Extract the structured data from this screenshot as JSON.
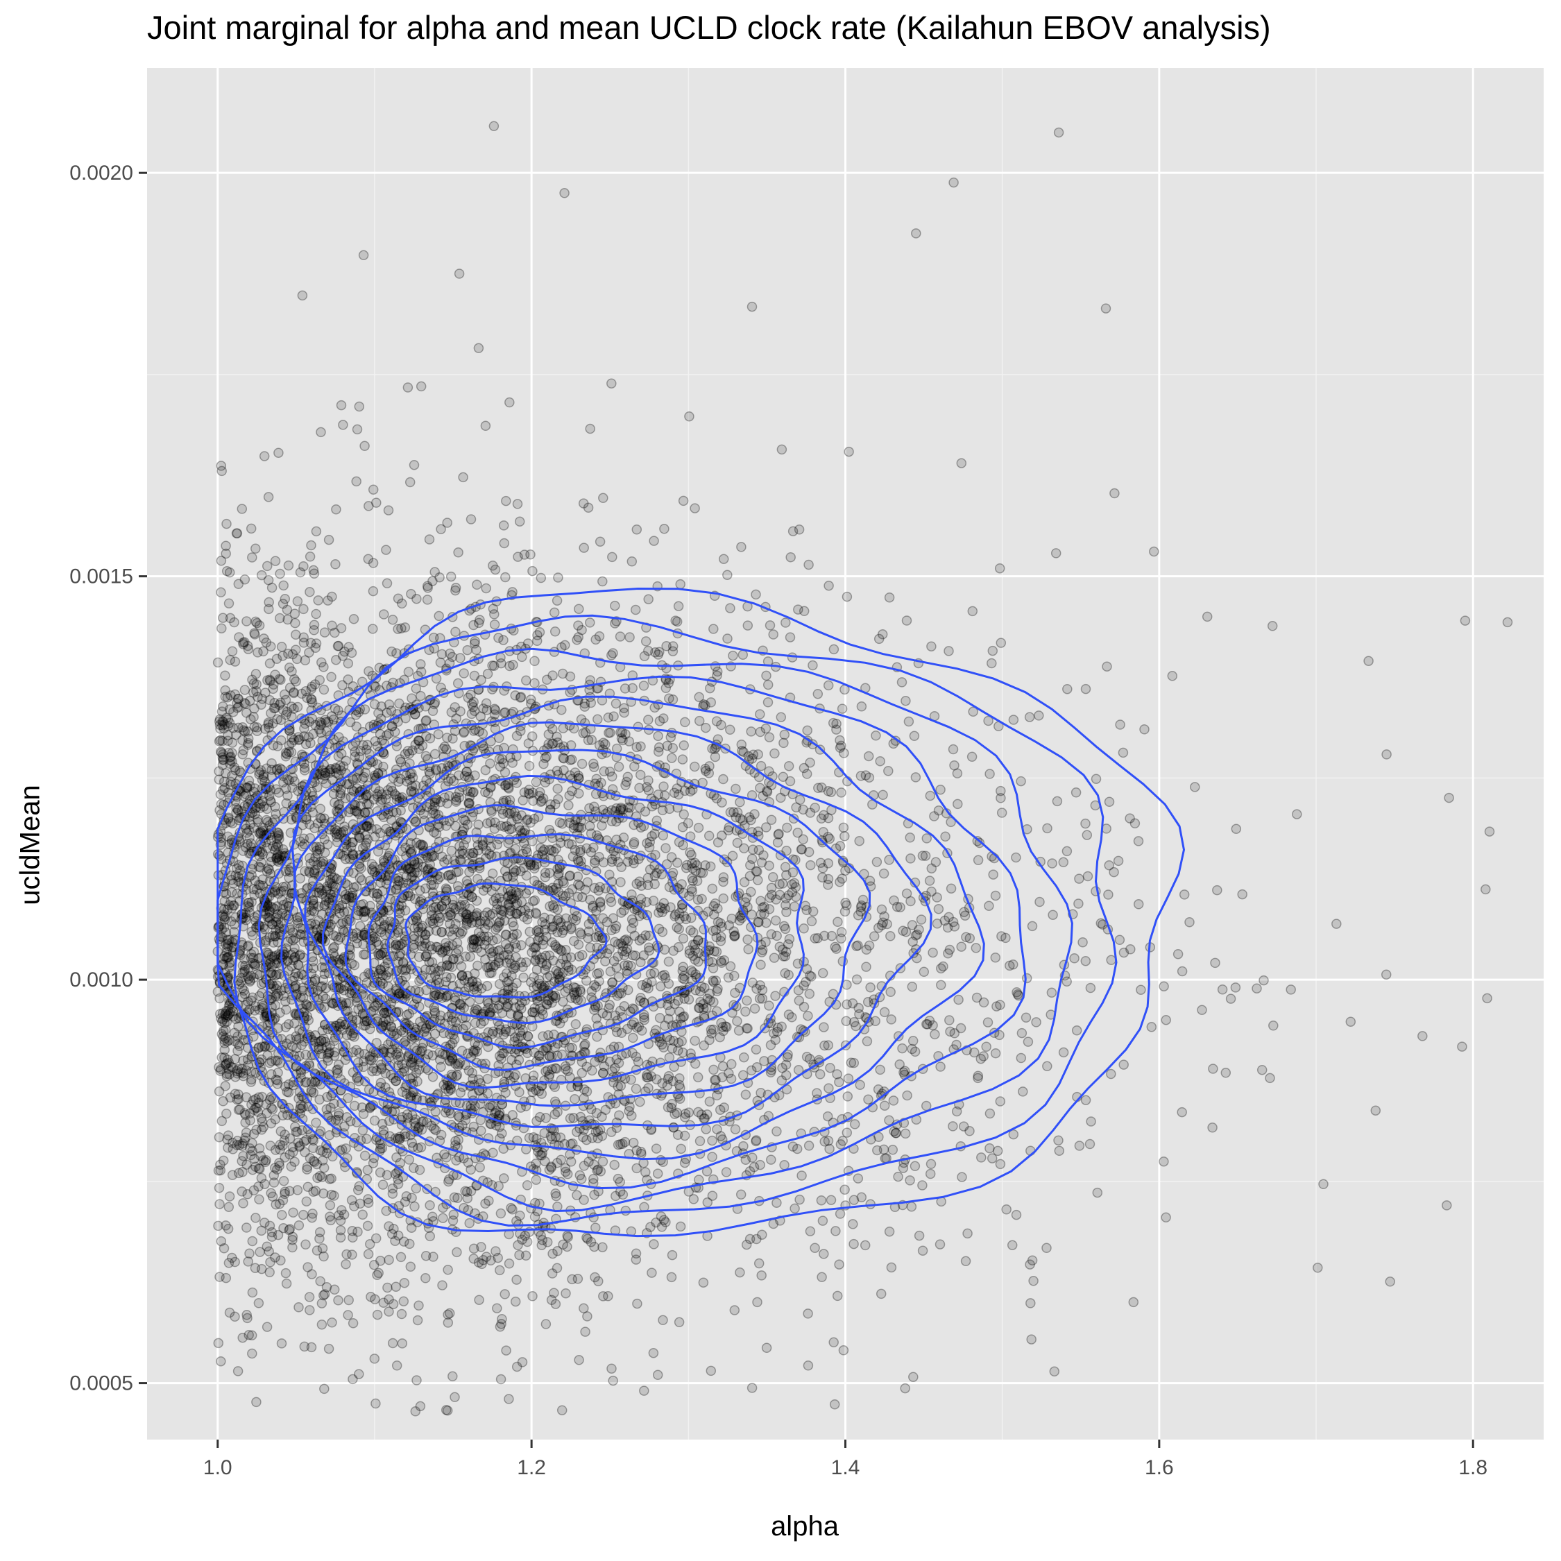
{
  "colors": {
    "panel_background": "#e5e5e5",
    "grid_major": "#ffffff",
    "grid_minor": "#f2f2f2",
    "points": "#000000",
    "contours": "#3050f8",
    "tick_marks": "#333333"
  },
  "chart_data": {
    "type": "scatter",
    "title": "Joint marginal for alpha and mean UCLD clock rate (Kailahun EBOV analysis)",
    "xlabel": "alpha",
    "ylabel": "ucldMean",
    "xlim": [
      0.955,
      1.845
    ],
    "ylim": [
      0.00043,
      0.00213
    ],
    "x_ticks": [
      1.0,
      1.2,
      1.4,
      1.6,
      1.8
    ],
    "x_tick_labels": [
      "1.0",
      "1.2",
      "1.4",
      "1.6",
      "1.8"
    ],
    "y_ticks": [
      0.0005,
      0.001,
      0.0015,
      0.002
    ],
    "y_tick_labels": [
      "0.0005",
      "0.0010",
      "0.0015",
      "0.0020"
    ],
    "grid": true,
    "legend": "none",
    "series": [
      {
        "kind": "points",
        "description_of_distribution": "Approximately 7000 posterior samples; bulk centered near alpha 1.2, ucldMean 0.00105; sharp lower bound at alpha = 1.0; long right tail in alpha.",
        "center": [
          1.2,
          0.00105
        ],
        "outliers": [
          [
            1.176,
            0.002058
          ],
          [
            1.536,
            0.00205
          ],
          [
            1.469,
            0.001988
          ],
          [
            1.221,
            0.001975
          ],
          [
            1.445,
            0.001925
          ],
          [
            1.093,
            0.001898
          ],
          [
            1.154,
            0.001875
          ],
          [
            1.054,
            0.001848
          ],
          [
            1.566,
            0.001832
          ],
          [
            1.822,
            0.001443
          ],
          [
            1.795,
            0.001445
          ],
          [
            1.126,
            0.000465
          ],
          [
            1.251,
            0.000518
          ],
          [
            1.002,
            0.000527
          ],
          [
            1.701,
            0.000643
          ],
          [
            1.809,
            0.000977
          ],
          [
            1.808,
            0.001112
          ],
          [
            1.793,
            0.000917
          ]
        ]
      },
      {
        "kind": "density-contours",
        "levels": 12
      }
    ]
  }
}
